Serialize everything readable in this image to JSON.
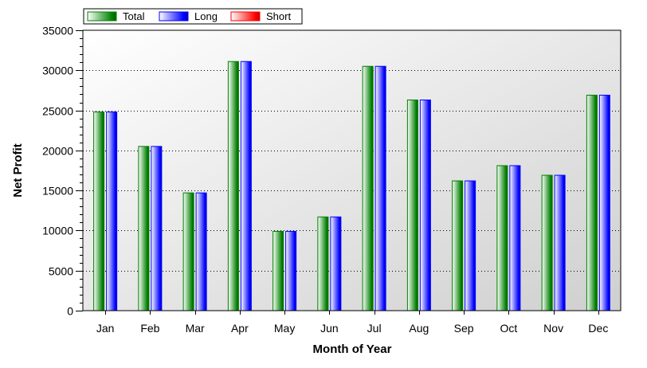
{
  "chart_data": {
    "type": "bar",
    "xlabel": "Month of Year",
    "ylabel": "Net Profit",
    "categories": [
      "Jan",
      "Feb",
      "Mar",
      "Apr",
      "May",
      "Jun",
      "Jul",
      "Aug",
      "Sep",
      "Oct",
      "Nov",
      "Dec"
    ],
    "ylim": [
      0,
      35000
    ],
    "y_ticks": [
      0,
      5000,
      10000,
      15000,
      20000,
      25000,
      30000,
      35000
    ],
    "y_tick_labels": [
      "0",
      "5000",
      "10000",
      "15000",
      "20000",
      "25000",
      "30000",
      "35000"
    ],
    "grid": "horizontal dotted",
    "legend_placement": "top-left",
    "series": [
      {
        "name": "Total",
        "color": "#008000",
        "values": [
          24800,
          20500,
          14700,
          31100,
          9900,
          11700,
          30500,
          26300,
          16200,
          18100,
          16900,
          26900
        ]
      },
      {
        "name": "Long",
        "color": "#0000ff",
        "values": [
          24800,
          20500,
          14700,
          31100,
          9900,
          11700,
          30500,
          26300,
          16200,
          18100,
          16900,
          26900
        ]
      },
      {
        "name": "Short",
        "color": "#ff0000",
        "values": [
          0,
          0,
          0,
          0,
          0,
          0,
          0,
          0,
          0,
          0,
          0,
          0
        ]
      }
    ]
  }
}
